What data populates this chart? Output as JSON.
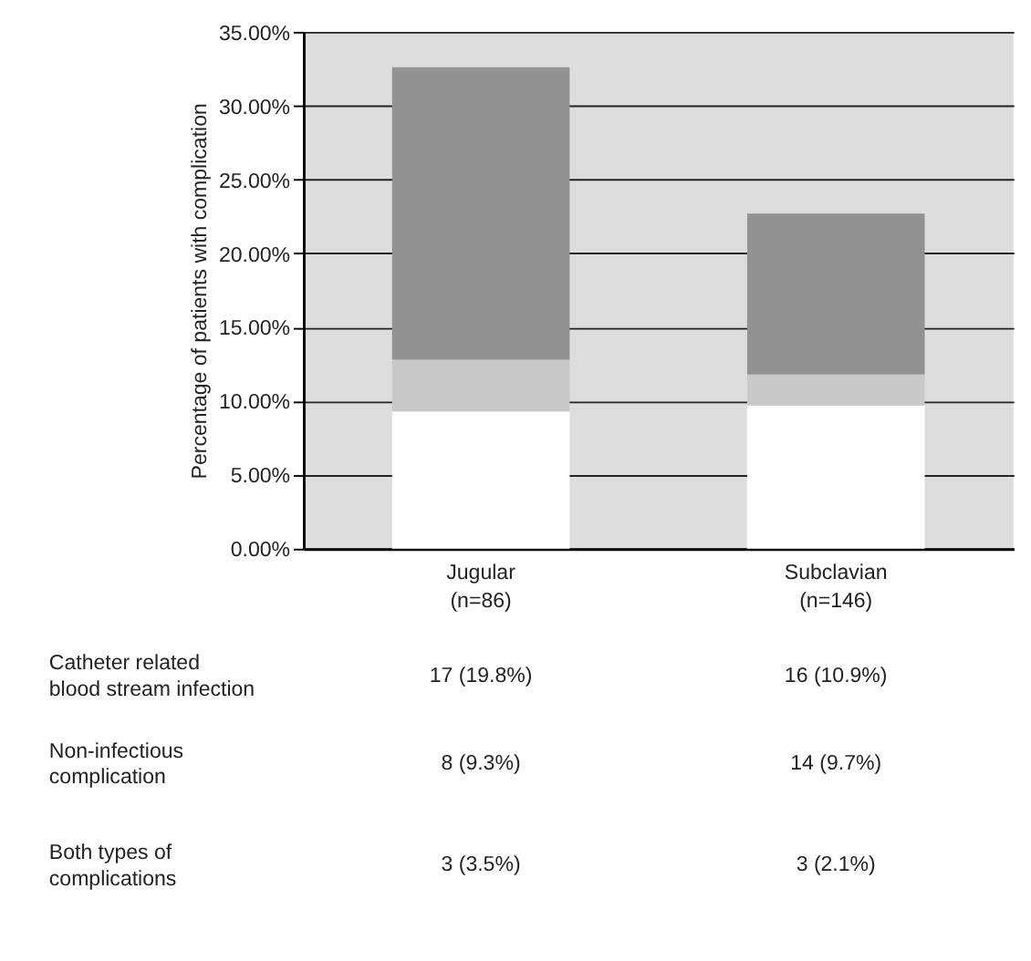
{
  "chart_data": {
    "type": "bar",
    "stacked": true,
    "ylabel": "Percentage of patients with complication",
    "categories": [
      "Jugular (n=86)",
      "Subclavian (n=146)"
    ],
    "series": [
      {
        "color": "#ffffff",
        "values": [
          9.3,
          9.7
        ]
      },
      {
        "color": "#c8c9cb",
        "values": [
          3.5,
          2.1
        ]
      },
      {
        "color": "#919295",
        "values": [
          19.8,
          10.9
        ]
      }
    ],
    "ylim": [
      0,
      35
    ],
    "yticks": [
      {
        "value": 0,
        "label": "0.00%"
      },
      {
        "value": 5,
        "label": "5.00%"
      },
      {
        "value": 10,
        "label": "10.00%"
      },
      {
        "value": 15,
        "label": "15.00%"
      },
      {
        "value": 20,
        "label": "20.00%"
      },
      {
        "value": 25,
        "label": "25.00%"
      },
      {
        "value": 30,
        "label": "30.00%"
      },
      {
        "value": 35,
        "label": "35.00%"
      }
    ],
    "annotations": [
      "Catheter related blood stream infection",
      "17 (19.8%)",
      "16  (10.9%)",
      "Non-infectious complication",
      "8 (9.3%)",
      "14 (9.7%)",
      "Both types of complications",
      "3 (3.5%)",
      "3 (2.1%)"
    ],
    "grid": "y",
    "legend": false
  }
}
